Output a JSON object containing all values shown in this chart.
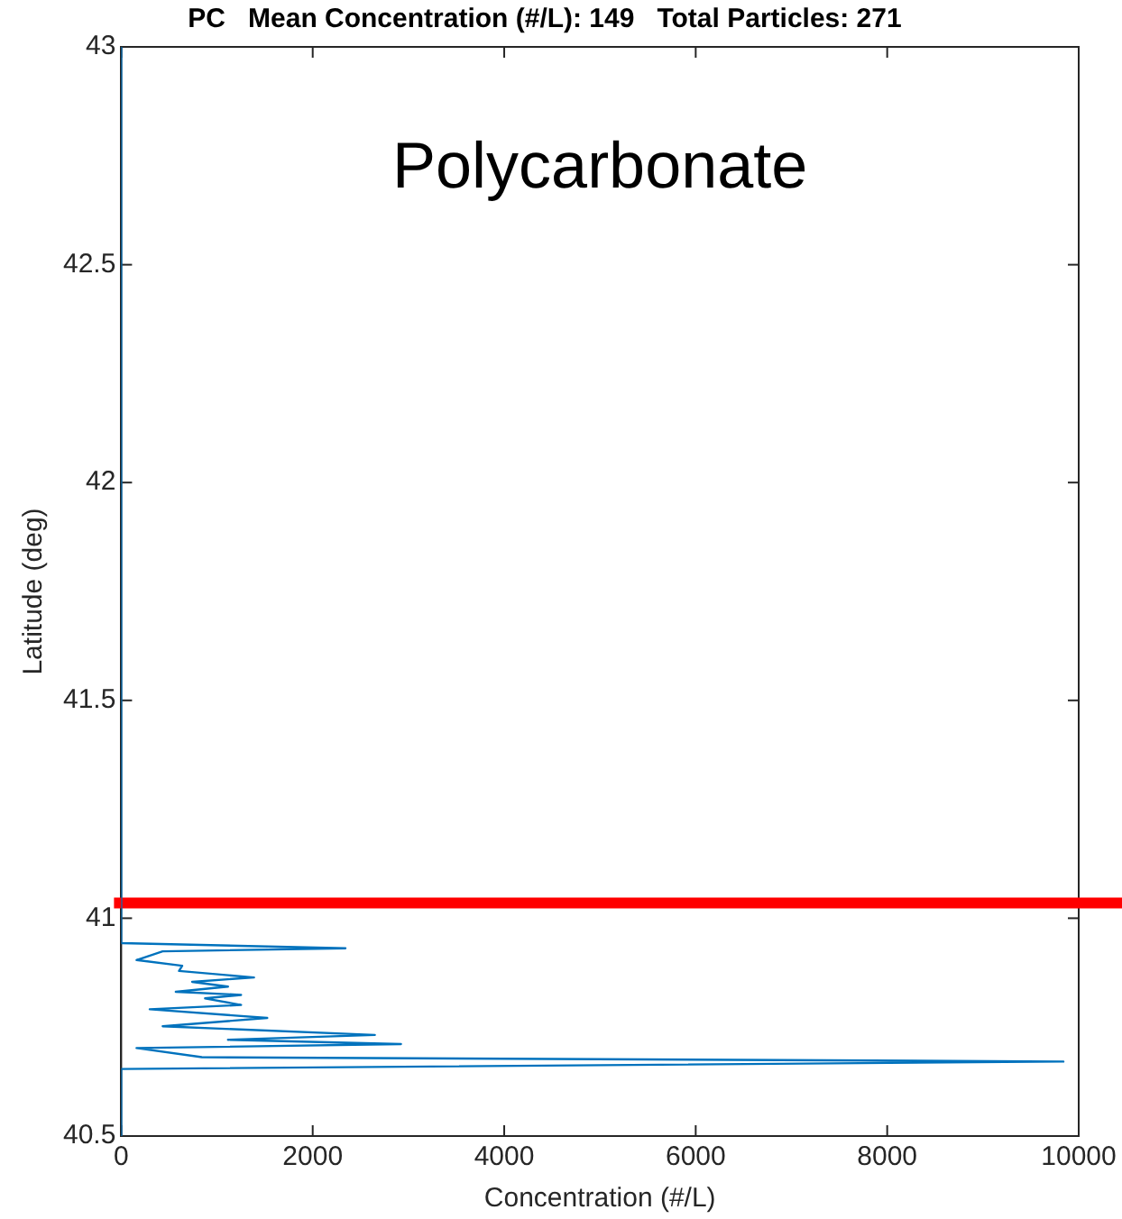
{
  "chart_data": {
    "type": "line",
    "title": "PC   Mean Concentration (#/L): 149   Total Particles: 271",
    "xlabel": "Concentration (#/L)",
    "ylabel": "Latitude (deg)",
    "annotations": [
      "Polycarbonate"
    ],
    "series": [
      {
        "color": "#0072bd",
        "x": [
          0,
          0,
          2342,
          433,
          160,
          637,
          604,
          1387,
          741,
          1115,
          570,
          1252,
          876,
          1252,
          298,
          1525,
          433,
          2649,
          1115,
          2922,
          160,
          842,
          9840,
          0,
          0
        ],
        "values": [
          43,
          40.943,
          40.931,
          40.924,
          40.904,
          40.891,
          40.879,
          40.864,
          40.854,
          40.843,
          40.831,
          40.824,
          40.816,
          40.801,
          40.791,
          40.771,
          40.752,
          40.732,
          40.721,
          40.711,
          40.702,
          40.681,
          40.671,
          40.654,
          40.5
        ]
      }
    ],
    "xlim": [
      0,
      10000
    ],
    "xticks": [
      0,
      2000,
      4000,
      6000,
      8000,
      10000
    ],
    "ylim": [
      40.5,
      43
    ],
    "yticks": [
      40.5,
      41,
      41.5,
      42,
      42.5,
      43
    ],
    "ref_lines": [
      {
        "axis": "y",
        "value": 41.035,
        "color": "#ff0000"
      }
    ],
    "grid": false,
    "legend": false,
    "marker": "none",
    "line_style": "solid"
  }
}
